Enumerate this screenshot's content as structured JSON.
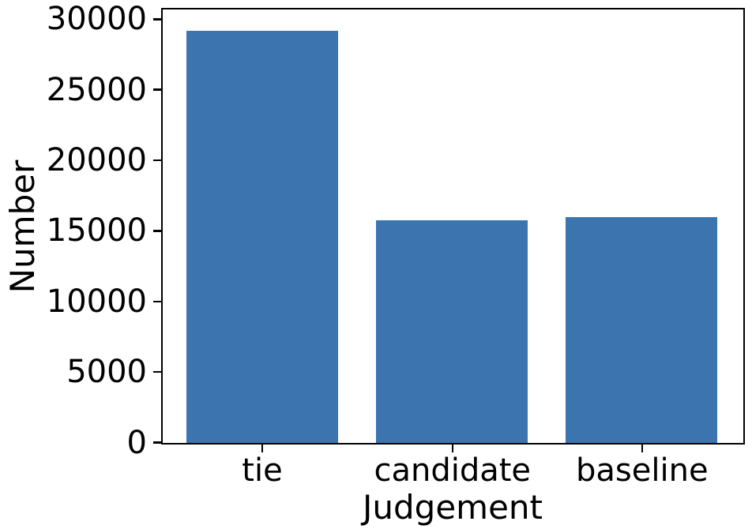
{
  "chart_data": {
    "type": "bar",
    "title": "",
    "categories": [
      "tie",
      "candidate",
      "baseline"
    ],
    "values": [
      29200,
      15800,
      16000
    ],
    "xlabel": "Judgement",
    "ylabel": "Number",
    "yticks": [
      0,
      5000,
      10000,
      15000,
      20000,
      25000,
      30000
    ],
    "ylim": [
      0,
      30660
    ],
    "bar_color": "#3b74af",
    "axis_color": "#000000",
    "text_color": "#000000",
    "background_color": "#ffffff",
    "grid": false,
    "legend": null
  }
}
